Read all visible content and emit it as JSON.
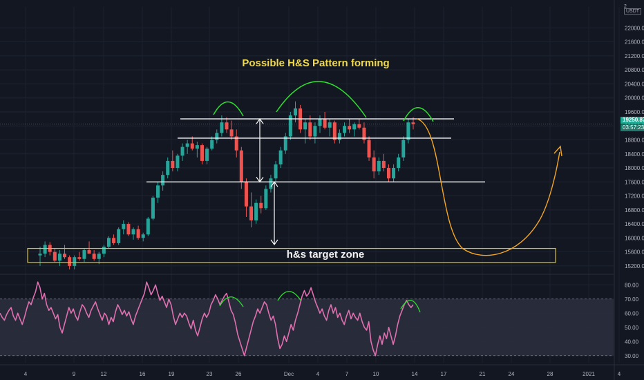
{
  "currency_label": "USDT",
  "axis_prefix": "2",
  "last_price": "19250.87",
  "countdown": "03:57:23",
  "colors": {
    "background": "#131722",
    "bull": "#26a69a",
    "bear": "#ef5350",
    "rsi": "#e070b0",
    "pattern_arc": "#2fe02f",
    "projection": "#f5a623",
    "target_zone": "#d9c32a",
    "lines": "#ffffff"
  },
  "annotations": {
    "title": "Possible H&S Pattern forming",
    "target_zone": "h&s target zone"
  },
  "chart_data": [
    {
      "type": "candlestick",
      "title": "",
      "ylim": [
        15000,
        22600
      ],
      "y_ticks": [
        15200,
        15600,
        16000,
        16400,
        16800,
        17200,
        17600,
        18000,
        18400,
        18800,
        19200,
        19600,
        20000,
        20400,
        20800,
        21200,
        21600,
        22000
      ],
      "y_tick_labels": [
        "15200.00",
        "15600.00",
        "16000.00",
        "16400.00",
        "16800.00",
        "17200.00",
        "17600.00",
        "18000.00",
        "18400.00",
        "18800.00",
        "19200.00",
        "19600.00",
        "20000.00",
        "20400.00",
        "20800.00",
        "21200.00",
        "21600.00",
        "22000.00"
      ],
      "x_tick_labels": [
        "4",
        "9",
        "12",
        "16",
        "19",
        "23",
        "26",
        "Dec",
        "4",
        "7",
        "10",
        "14",
        "17",
        "21",
        "24",
        "28",
        "2021",
        "4"
      ],
      "grid": true,
      "horizontal_levels": [
        19400,
        18850,
        17600
      ],
      "target_zone": [
        15300,
        15700
      ],
      "series": [
        {
          "values": [
            [
              15500,
              15750,
              15200,
              15550
            ],
            [
              15550,
              15900,
              15450,
              15800
            ],
            [
              15800,
              15880,
              15500,
              15600
            ],
            [
              15600,
              15700,
              15300,
              15350
            ],
            [
              15350,
              15650,
              15200,
              15550
            ],
            [
              15550,
              15800,
              15400,
              15450
            ],
            [
              15450,
              15500,
              15100,
              15200
            ],
            [
              15200,
              15500,
              15100,
              15450
            ],
            [
              15450,
              15600,
              15350,
              15400
            ],
            [
              15400,
              15700,
              15300,
              15650
            ],
            [
              15650,
              15900,
              15550,
              15550
            ],
            [
              15550,
              15650,
              15350,
              15400
            ],
            [
              15400,
              15600,
              15250,
              15550
            ],
            [
              15550,
              15800,
              15450,
              15750
            ],
            [
              15750,
              16050,
              15700,
              16000
            ],
            [
              16000,
              16100,
              15800,
              15850
            ],
            [
              15850,
              16300,
              15800,
              16250
            ],
            [
              16250,
              16500,
              16100,
              16400
            ],
            [
              16400,
              16450,
              16050,
              16100
            ],
            [
              16100,
              16300,
              15950,
              16250
            ],
            [
              16250,
              16350,
              15950,
              16000
            ],
            [
              16000,
              16150,
              15900,
              16100
            ],
            [
              16100,
              16600,
              16050,
              16550
            ],
            [
              16550,
              17200,
              16500,
              17150
            ],
            [
              17150,
              17600,
              17000,
              17500
            ],
            [
              17500,
              17900,
              17350,
              17800
            ],
            [
              17800,
              18300,
              17700,
              18200
            ],
            [
              18200,
              18500,
              17900,
              18000
            ],
            [
              18000,
              18400,
              17900,
              18350
            ],
            [
              18350,
              18700,
              18200,
              18600
            ],
            [
              18600,
              18800,
              18400,
              18700
            ],
            [
              18700,
              18900,
              18500,
              18550
            ],
            [
              18550,
              18750,
              18300,
              18650
            ],
            [
              18650,
              18700,
              18100,
              18200
            ],
            [
              18200,
              18600,
              18100,
              18550
            ],
            [
              18550,
              18900,
              18500,
              18800
            ],
            [
              18800,
              19100,
              18700,
              19000
            ],
            [
              19000,
              19500,
              18900,
              19300
            ],
            [
              19300,
              19450,
              19000,
              19100
            ],
            [
              19100,
              19350,
              18800,
              18900
            ],
            [
              18900,
              19100,
              18300,
              18500
            ],
            [
              18500,
              18600,
              17400,
              17600
            ],
            [
              17600,
              17700,
              16600,
              16900
            ],
            [
              16900,
              17300,
              16300,
              16500
            ],
            [
              16500,
              17100,
              16400,
              17000
            ],
            [
              17000,
              17200,
              16700,
              16850
            ],
            [
              16850,
              17500,
              16800,
              17400
            ],
            [
              17400,
              17800,
              17300,
              17700
            ],
            [
              17700,
              18200,
              17600,
              18100
            ],
            [
              18100,
              18600,
              18000,
              18500
            ],
            [
              18500,
              19000,
              18400,
              18900
            ],
            [
              18900,
              19600,
              18800,
              19500
            ],
            [
              19500,
              19900,
              19300,
              19700
            ],
            [
              19700,
              19800,
              19000,
              19100
            ],
            [
              19100,
              19400,
              18700,
              19300
            ],
            [
              19300,
              19500,
              18800,
              18900
            ],
            [
              18900,
              19300,
              18700,
              19200
            ],
            [
              19200,
              19500,
              19000,
              19400
            ],
            [
              19400,
              19600,
              19100,
              19150
            ],
            [
              19150,
              19400,
              18900,
              19300
            ],
            [
              19300,
              19350,
              18700,
              18800
            ],
            [
              18800,
              19100,
              18700,
              19000
            ],
            [
              19000,
              19300,
              18900,
              19200
            ],
            [
              19200,
              19400,
              19000,
              19100
            ],
            [
              19100,
              19300,
              18900,
              19250
            ],
            [
              19250,
              19400,
              19100,
              19150
            ],
            [
              19150,
              19300,
              18700,
              18800
            ],
            [
              18800,
              18900,
              18200,
              18300
            ],
            [
              18300,
              18500,
              17700,
              17900
            ],
            [
              17900,
              18300,
              17800,
              18200
            ],
            [
              18200,
              18400,
              17900,
              18000
            ],
            [
              18000,
              18100,
              17600,
              17700
            ],
            [
              17700,
              18100,
              17600,
              18000
            ],
            [
              18000,
              18400,
              17900,
              18300
            ],
            [
              18300,
              18900,
              18200,
              18800
            ],
            [
              18800,
              19400,
              18700,
              19300
            ],
            [
              19300,
              19450,
              19100,
              19250
            ]
          ]
        }
      ]
    },
    {
      "type": "line",
      "title": "",
      "ylim": [
        25,
        86
      ],
      "y_ticks": [
        30,
        40,
        50,
        60,
        70,
        80
      ],
      "y_tick_labels": [
        "30.00",
        "40.00",
        "50.00",
        "60.00",
        "70.00",
        "80.00"
      ],
      "band": [
        30,
        70
      ],
      "series": [
        {
          "values": [
            60,
            57,
            55,
            59,
            62,
            64,
            58,
            55,
            60,
            56,
            52,
            57,
            63,
            68,
            66,
            71,
            75,
            82,
            78,
            70,
            74,
            66,
            62,
            64,
            60,
            56,
            59,
            50,
            46,
            52,
            58,
            64,
            60,
            63,
            58,
            55,
            61,
            66,
            64,
            60,
            57,
            62,
            65,
            68,
            63,
            59,
            55,
            60,
            58,
            52,
            57,
            54,
            61,
            66,
            63,
            59,
            62,
            58,
            61,
            56,
            52,
            58,
            62,
            66,
            70,
            74,
            82,
            78,
            73,
            76,
            80,
            74,
            69,
            72,
            68,
            64,
            70,
            66,
            58,
            52,
            56,
            60,
            57,
            60,
            58,
            53,
            49,
            55,
            48,
            44,
            50,
            56,
            60,
            57,
            60,
            66,
            69,
            73,
            70,
            66,
            69,
            72,
            74,
            68,
            62,
            59,
            53,
            45,
            40,
            35,
            30,
            36,
            42,
            48,
            54,
            58,
            63,
            60,
            64,
            68,
            66,
            60,
            55,
            58,
            52,
            42,
            35,
            38,
            44,
            40,
            46,
            52,
            48,
            55,
            60,
            66,
            72,
            76,
            72,
            74,
            78,
            73,
            68,
            64,
            60,
            63,
            58,
            55,
            62,
            66,
            60,
            64,
            57,
            60,
            55,
            52,
            58,
            62,
            56,
            60,
            57,
            55,
            60,
            54,
            50,
            48,
            54,
            40,
            34,
            30,
            38,
            44,
            38,
            46,
            42,
            50,
            44,
            38,
            44,
            52,
            58,
            62,
            66,
            69,
            66,
            64,
            66
          ]
        }
      ]
    }
  ]
}
